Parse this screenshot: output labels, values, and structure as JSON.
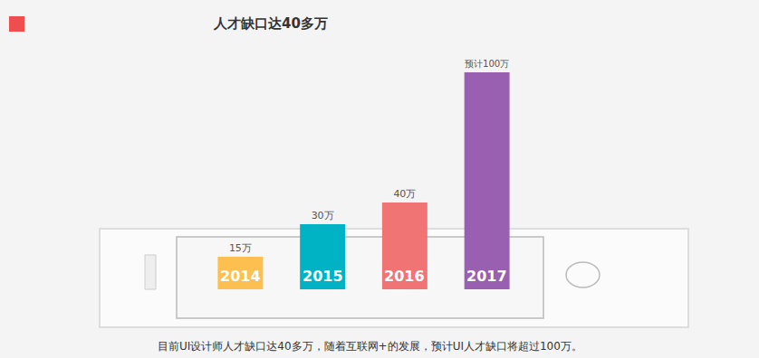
{
  "chart_data": {
    "type": "bar",
    "title": "人才缺口达40多万",
    "caption": "目前UI设计师人才缺口达40多万，随着互联网+的发展，预计UI人才缺口将超过100万。",
    "categories": [
      "2014",
      "2015",
      "2016",
      "2017"
    ],
    "values": [
      15,
      30,
      40,
      100
    ],
    "value_labels": [
      "15万",
      "30万",
      "40万",
      "预计100万"
    ],
    "colors": [
      "#fdbf50",
      "#00b3c4",
      "#f07474",
      "#995fb1"
    ],
    "ylim": [
      0,
      100
    ],
    "data_labels": true,
    "grid": false
  }
}
